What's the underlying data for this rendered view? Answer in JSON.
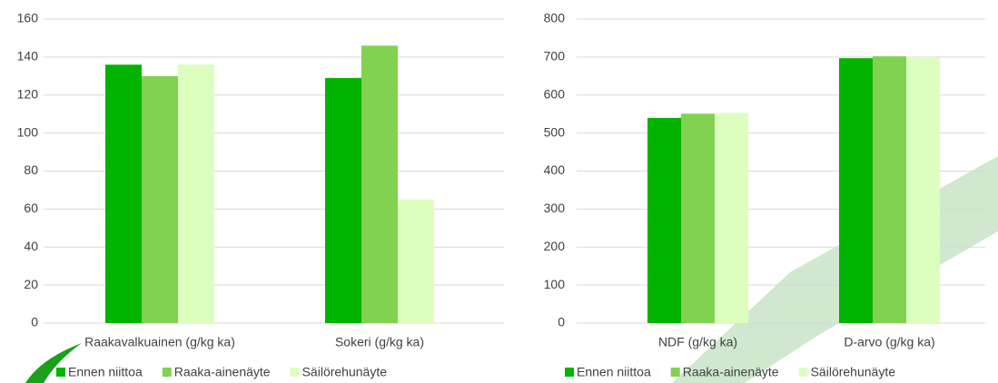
{
  "chart_data": [
    {
      "type": "bar",
      "categories": [
        "Raakavalkuainen (g/kg ka)",
        "Sokeri (g/kg ka)"
      ],
      "series": [
        {
          "name": "Ennen niittoa",
          "color": "#00b400",
          "values": [
            136,
            129
          ]
        },
        {
          "name": "Raaka-ainenäyte",
          "color": "#80d250",
          "values": [
            130,
            146
          ]
        },
        {
          "name": "Säilörehunäyte",
          "color": "#dcffc0",
          "values": [
            136,
            65
          ]
        }
      ],
      "ylim": [
        0,
        160
      ],
      "yticks": [
        0,
        20,
        40,
        60,
        80,
        100,
        120,
        140,
        160
      ],
      "grid": true,
      "legend": "bottom"
    },
    {
      "type": "bar",
      "categories": [
        "NDF (g/kg ka)",
        "D-arvo (g/kg ka)"
      ],
      "series": [
        {
          "name": "Ennen niittoa",
          "color": "#00b400",
          "values": [
            540,
            697
          ]
        },
        {
          "name": "Raaka-ainenäyte",
          "color": "#80d250",
          "values": [
            551,
            702
          ]
        },
        {
          "name": "Säilörehunäyte",
          "color": "#dcffc0",
          "values": [
            553,
            698
          ]
        }
      ],
      "ylim": [
        0,
        800
      ],
      "yticks": [
        0,
        100,
        200,
        300,
        400,
        500,
        600,
        700,
        800
      ],
      "grid": true,
      "legend": "bottom"
    }
  ]
}
